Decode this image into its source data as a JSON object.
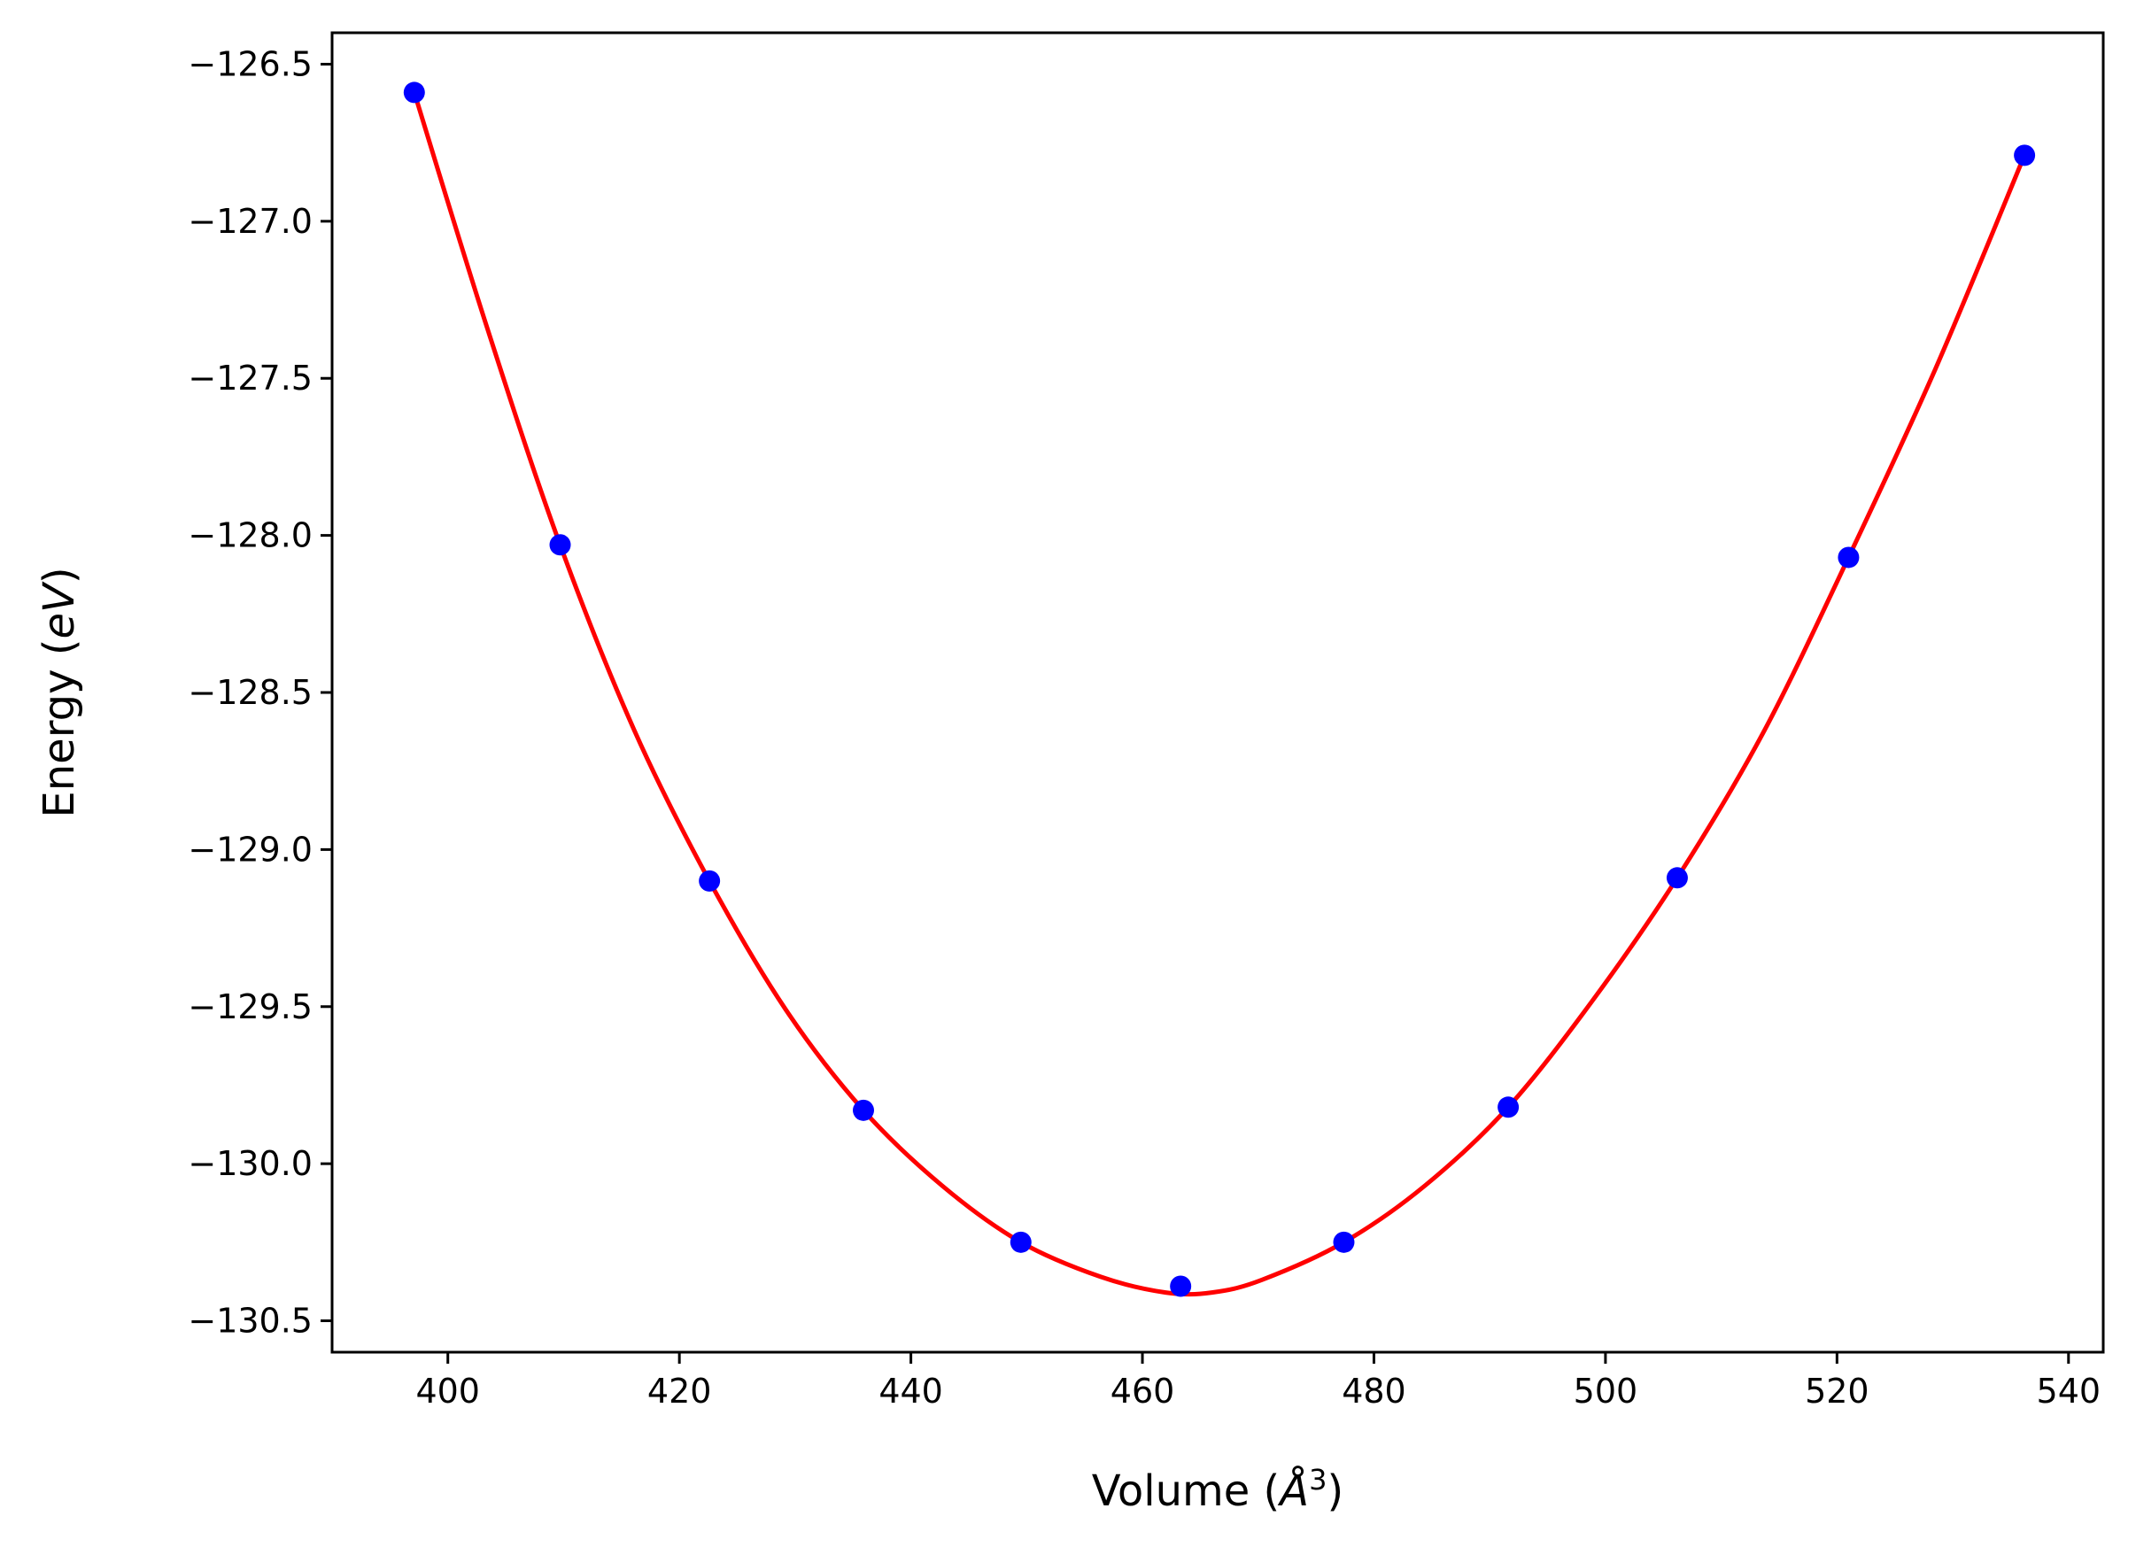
{
  "chart_data": {
    "type": "scatter",
    "title": "",
    "xlabel": {
      "prefix": "Volume (",
      "symbol": "Å",
      "exponent": "3",
      "suffix": ")"
    },
    "ylabel": {
      "prefix": "Energy (",
      "symbol": "eV",
      "suffix": ")"
    },
    "xlim": [
      390,
      543
    ],
    "ylim": [
      -130.6,
      -126.4
    ],
    "grid": false,
    "x_ticks": [
      400,
      420,
      440,
      460,
      480,
      500,
      520,
      540
    ],
    "y_ticks": [
      -126.5,
      -127.0,
      -127.5,
      -128.0,
      -128.5,
      -129.0,
      -129.5,
      -130.0,
      -130.5
    ],
    "x_tick_labels": [
      "400",
      "420",
      "440",
      "460",
      "480",
      "500",
      "520",
      "540"
    ],
    "y_tick_labels": [
      "−126.5",
      "−127.0",
      "−127.5",
      "−128.0",
      "−128.5",
      "−129.0",
      "−129.5",
      "−130.0",
      "−130.5"
    ],
    "series": [
      {
        "kind": "points",
        "color": "#0000ff",
        "x": [
          397.1,
          409.7,
          422.6,
          435.9,
          449.5,
          463.3,
          477.4,
          491.6,
          506.2,
          521.0,
          536.2
        ],
        "y": [
          -126.59,
          -128.03,
          -129.1,
          -129.83,
          -130.25,
          -130.39,
          -130.25,
          -129.82,
          -129.09,
          -128.07,
          -126.79
        ]
      },
      {
        "kind": "fit-curve",
        "color": "#ff0000",
        "x": [
          397.1,
          403.4,
          409.7,
          416.1,
          422.6,
          429.2,
          435.9,
          442.7,
          449.5,
          456.4,
          462.0,
          466.0,
          470.3,
          477.4,
          484.4,
          491.6,
          498.9,
          506.2,
          513.6,
          521.0,
          528.5,
          536.2
        ],
        "y": [
          -126.59,
          -127.34,
          -128.03,
          -128.62,
          -129.1,
          -129.51,
          -129.83,
          -130.07,
          -130.25,
          -130.36,
          -130.41,
          -130.41,
          -130.37,
          -130.25,
          -130.07,
          -129.82,
          -129.48,
          -129.09,
          -128.63,
          -128.07,
          -127.47,
          -126.79
        ]
      }
    ]
  }
}
